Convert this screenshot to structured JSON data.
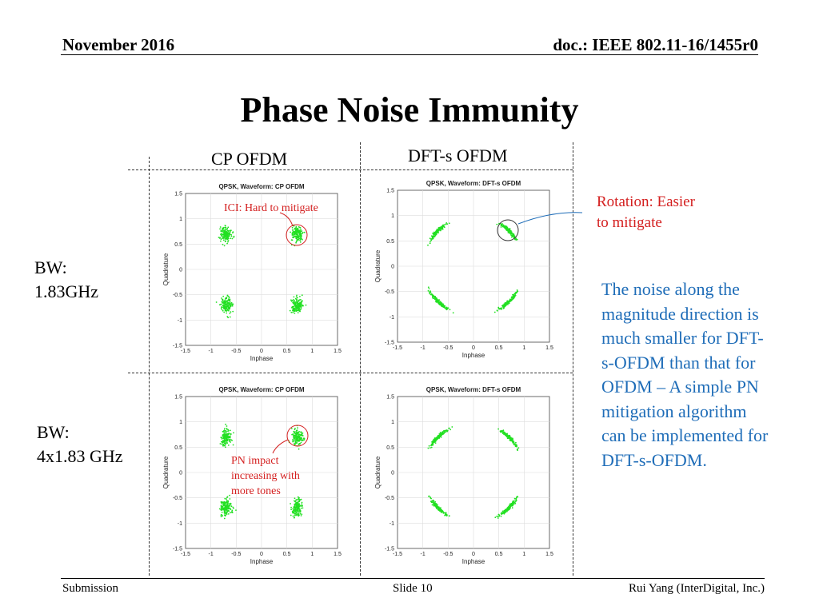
{
  "header": {
    "date": "November 2016",
    "doc": "doc.: IEEE 802.11-16/1455r0"
  },
  "title": "Phase Noise Immunity",
  "columns": [
    "CP OFDM",
    "DFT-s OFDM"
  ],
  "rows": [
    {
      "line1": "BW:",
      "line2": "1.83GHz"
    },
    {
      "line1": "BW:",
      "line2": "4x1.83 GHz"
    }
  ],
  "annotations": {
    "ici": "ICI: Hard to mitigate",
    "pn_line1": "PN impact",
    "pn_line2": "increasing with",
    "pn_line3": "more tones",
    "rotation_line1": "Rotation: Easier",
    "rotation_line2": "to mitigate"
  },
  "side_text": [
    "The noise along the",
    "magnitude direction is",
    "much smaller for DFT-",
    "s-OFDM than that for",
    "OFDM – A simple PN",
    "mitigation algorithm",
    "can be implemented for",
    "DFT-s-OFDM."
  ],
  "footer": {
    "left": "Submission",
    "center": "Slide 10",
    "right": "Rui Yang (InterDigital, Inc.)"
  },
  "colors": {
    "constellation": "#22e022",
    "annotation_red": "#d42020",
    "text_blue": "#1f6db8"
  },
  "chart_data": [
    {
      "type": "scatter",
      "title": "QPSK, Waveform: CP OFDM",
      "xlabel": "Inphase",
      "ylabel": "Quadrature",
      "xlim": [
        -1.5,
        1.5
      ],
      "ylim": [
        -1.5,
        1.5
      ],
      "x_ticks": [
        "-1.5",
        "-1",
        "-0.5",
        "0",
        "0.5",
        "1",
        "1.5"
      ],
      "y_ticks": [
        "1.5",
        "1",
        "0.5",
        "0",
        "-0.5",
        "-1",
        "-1.5"
      ],
      "grid": true,
      "clusters": [
        {
          "x": -0.7,
          "y": 0.7,
          "shape": "blob"
        },
        {
          "x": 0.7,
          "y": 0.7,
          "shape": "blob"
        },
        {
          "x": -0.7,
          "y": -0.7,
          "shape": "blob"
        },
        {
          "x": 0.7,
          "y": -0.7,
          "shape": "blob"
        }
      ]
    },
    {
      "type": "scatter",
      "title": "QPSK, Waveform: DFT-s OFDM",
      "xlabel": "Inphase",
      "ylabel": "Quadrature",
      "xlim": [
        -1.5,
        1.5
      ],
      "ylim": [
        -1.5,
        1.5
      ],
      "x_ticks": [
        "-1.5",
        "-1",
        "-0.5",
        "0",
        "0.5",
        "1",
        "1.5"
      ],
      "y_ticks": [
        "1.5",
        "1",
        "0.5",
        "0",
        "-0.5",
        "-1",
        "-1.5"
      ],
      "grid": true,
      "clusters": [
        {
          "x": -0.7,
          "y": 0.7,
          "shape": "arc"
        },
        {
          "x": 0.7,
          "y": 0.7,
          "shape": "arc"
        },
        {
          "x": -0.7,
          "y": -0.7,
          "shape": "arc"
        },
        {
          "x": 0.7,
          "y": -0.7,
          "shape": "arc"
        }
      ]
    },
    {
      "type": "scatter",
      "title": "QPSK, Waveform: CP OFDM",
      "xlabel": "Inphase",
      "ylabel": "Quadrature",
      "xlim": [
        -1.5,
        1.5
      ],
      "ylim": [
        -1.5,
        1.5
      ],
      "x_ticks": [
        "-1.5",
        "-1",
        "-0.5",
        "0",
        "0.5",
        "1",
        "1.5"
      ],
      "y_ticks": [
        "1.5",
        "1",
        "0.5",
        "0",
        "-0.5",
        "-1",
        "-1.5"
      ],
      "grid": true,
      "clusters": [
        {
          "x": -0.7,
          "y": 0.7,
          "shape": "blob"
        },
        {
          "x": 0.7,
          "y": 0.7,
          "shape": "blob"
        },
        {
          "x": -0.7,
          "y": -0.7,
          "shape": "blob"
        },
        {
          "x": 0.7,
          "y": -0.7,
          "shape": "blob"
        }
      ]
    },
    {
      "type": "scatter",
      "title": "QPSK, Waveform: DFT-s OFDM",
      "xlabel": "Inphase",
      "ylabel": "Quadrature",
      "xlim": [
        -1.5,
        1.5
      ],
      "ylim": [
        -1.5,
        1.5
      ],
      "x_ticks": [
        "-1.5",
        "-1",
        "-0.5",
        "0",
        "0.5",
        "1",
        "1.5"
      ],
      "y_ticks": [
        "1.5",
        "1",
        "0.5",
        "0",
        "-0.5",
        "-1",
        "-1.5"
      ],
      "grid": true,
      "clusters": [
        {
          "x": -0.7,
          "y": 0.7,
          "shape": "arc"
        },
        {
          "x": 0.7,
          "y": 0.7,
          "shape": "arc"
        },
        {
          "x": -0.7,
          "y": -0.7,
          "shape": "arc"
        },
        {
          "x": 0.7,
          "y": -0.7,
          "shape": "arc"
        }
      ]
    }
  ]
}
